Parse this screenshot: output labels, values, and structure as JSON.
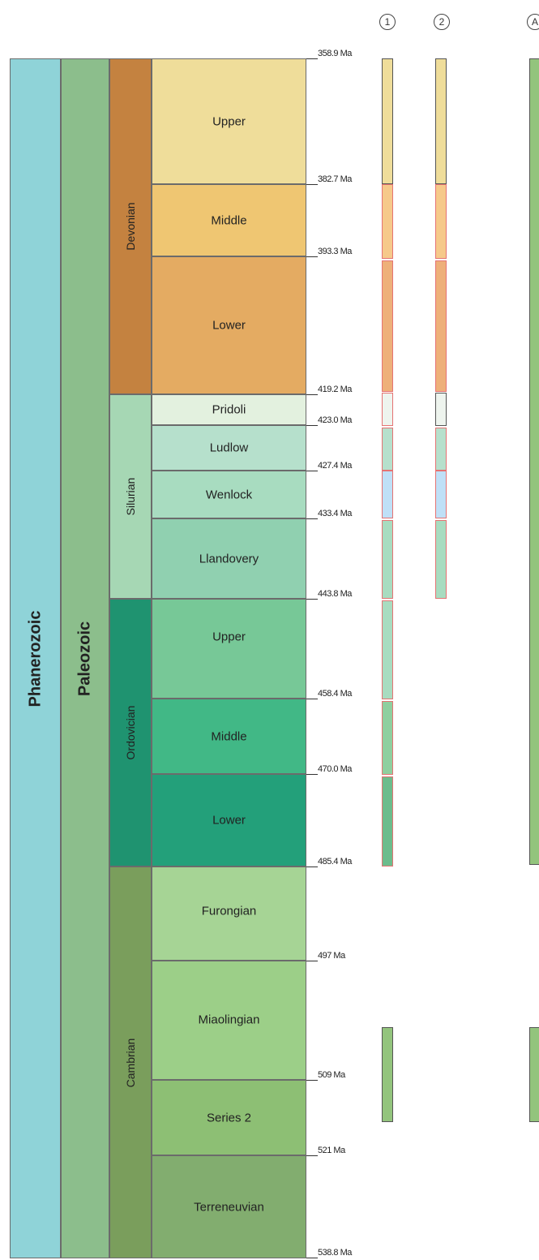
{
  "eon": {
    "label": "Phanerozoic",
    "color": "#8fd3d8"
  },
  "era": {
    "label": "Paleozoic",
    "color": "#8cbe8c"
  },
  "periods": [
    {
      "label": "Devonian",
      "color": "#c48240"
    },
    {
      "label": "Silurian",
      "color": "#a6d7b4"
    },
    {
      "label": "Ordovician",
      "color": "#1f9370"
    },
    {
      "label": "Cambrian",
      "color": "#7a9e5c"
    }
  ],
  "epochs": [
    {
      "label": "Upper",
      "color": "#efdd9a"
    },
    {
      "label": "Middle",
      "color": "#efc672"
    },
    {
      "label": "Lower",
      "color": "#e4ab62"
    },
    {
      "label": "Pridoli",
      "color": "#e3f1df"
    },
    {
      "label": "Ludlow",
      "color": "#b6e0cc"
    },
    {
      "label": "Wenlock",
      "color": "#a8dcc0"
    },
    {
      "label": "Llandovery",
      "color": "#90d0b0"
    },
    {
      "label": "Upper",
      "color": "#77c897"
    },
    {
      "label": "Middle",
      "color": "#41b886"
    },
    {
      "label": "Lower",
      "color": "#23a07a"
    },
    {
      "label": "Furongian",
      "color": "#a6d495"
    },
    {
      "label": "Miaolingian",
      "color": "#9ccf88"
    },
    {
      "label": "Series 2",
      "color": "#8dbf74"
    },
    {
      "label": "Terreneuvian",
      "color": "#82ad6f"
    }
  ],
  "boundaries": [
    {
      "label": "358.9 Ma"
    },
    {
      "label": "382.7 Ma"
    },
    {
      "label": "393.3 Ma"
    },
    {
      "label": "419.2 Ma"
    },
    {
      "label": "423.0 Ma"
    },
    {
      "label": "427.4 Ma"
    },
    {
      "label": "433.4 Ma"
    },
    {
      "label": "443.8 Ma"
    },
    {
      "label": "458.4 Ma"
    },
    {
      "label": "470.0 Ma"
    },
    {
      "label": "485.4 Ma"
    },
    {
      "label": "497 Ma"
    },
    {
      "label": "509 Ma"
    },
    {
      "label": "521 Ma"
    },
    {
      "label": "538.8 Ma"
    }
  ],
  "columns": [
    {
      "label": "1"
    },
    {
      "label": "2"
    },
    {
      "label": "A"
    }
  ],
  "bar_colors": {
    "upper_devonian": "#efdd9a",
    "middle_devonian": "#f6c98a",
    "lower_devonian": "#eeb07a",
    "pridoli": "#eef4ee",
    "ludlow": "#b6e0cc",
    "wenlock": "#bfe0f7",
    "silurian_green": "#a8dcc0",
    "ordovician_mid": "#8fcf9f",
    "ordovician_low": "#6cbc8c",
    "cambrian": "#93c47d",
    "green_long": "#93c47d",
    "red_outline": "#e57373",
    "dark_outline": "#555555"
  }
}
